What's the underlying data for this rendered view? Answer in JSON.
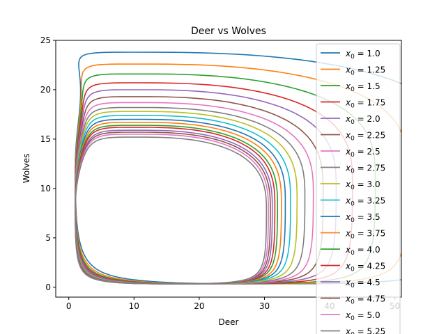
{
  "chart_data": {
    "type": "line",
    "title": "Deer vs Wolves",
    "xlabel": "Deer",
    "ylabel": "Wolves",
    "xlim": [
      -2,
      51
    ],
    "ylim": [
      -1,
      25
    ],
    "x_ticks": [
      0,
      10,
      20,
      30,
      40,
      50
    ],
    "y_ticks": [
      0,
      5,
      10,
      15,
      20,
      25
    ],
    "grid": false,
    "legend_position": "right",
    "orbit_shape": {
      "x_left": 1,
      "y_peak_x": 10,
      "y_low": 0.35
    },
    "series": [
      {
        "name": "x0 = 1.0",
        "label_value": "1.0",
        "color": "#1f77b4",
        "x_right": 60,
        "y_top": 23.8
      },
      {
        "name": "x0 = 1.25",
        "label_value": "1.25",
        "color": "#ff7f0e",
        "x_right": 52,
        "y_top": 22.6
      },
      {
        "name": "x0 = 1.5",
        "label_value": "1.5",
        "color": "#2ca02c",
        "x_right": 47,
        "y_top": 21.6
      },
      {
        "name": "x0 = 1.75",
        "label_value": "1.75",
        "color": "#d62728",
        "x_right": 43.5,
        "y_top": 20.7
      },
      {
        "name": "x0 = 2.0",
        "label_value": "2.0",
        "color": "#9467bd",
        "x_right": 41,
        "y_top": 20.0
      },
      {
        "name": "x0 = 2.25",
        "label_value": "2.25",
        "color": "#8c564b",
        "x_right": 39,
        "y_top": 19.3
      },
      {
        "name": "x0 = 2.5",
        "label_value": "2.5",
        "color": "#e377c2",
        "x_right": 37.5,
        "y_top": 18.7
      },
      {
        "name": "x0 = 2.75",
        "label_value": "2.75",
        "color": "#7f7f7f",
        "x_right": 36.2,
        "y_top": 18.2
      },
      {
        "name": "x0 = 3.0",
        "label_value": "3.0",
        "color": "#bcbd22",
        "x_right": 35,
        "y_top": 17.8
      },
      {
        "name": "x0 = 3.25",
        "label_value": "3.25",
        "color": "#17becf",
        "x_right": 34,
        "y_top": 17.4
      },
      {
        "name": "x0 = 3.5",
        "label_value": "3.5",
        "color": "#1f77b4",
        "x_right": 33.2,
        "y_top": 17.0
      },
      {
        "name": "x0 = 3.75",
        "label_value": "3.75",
        "color": "#ff7f0e",
        "x_right": 32.6,
        "y_top": 16.7
      },
      {
        "name": "x0 = 4.0",
        "label_value": "4.0",
        "color": "#2ca02c",
        "x_right": 32.0,
        "y_top": 16.4
      },
      {
        "name": "x0 = 4.25",
        "label_value": "4.25",
        "color": "#d62728",
        "x_right": 31.6,
        "y_top": 16.2
      },
      {
        "name": "x0 = 4.5",
        "label_value": "4.5",
        "color": "#9467bd",
        "x_right": 31.2,
        "y_top": 15.9
      },
      {
        "name": "x0 = 4.75",
        "label_value": "4.75",
        "color": "#8c564b",
        "x_right": 30.9,
        "y_top": 15.7
      },
      {
        "name": "x0 = 5.0",
        "label_value": "5.0",
        "color": "#e377c2",
        "x_right": 30.6,
        "y_top": 15.5
      },
      {
        "name": "x0 = 5.25",
        "label_value": "5.25",
        "color": "#7f7f7f",
        "x_right": 30.3,
        "y_top": 15.2
      }
    ]
  }
}
